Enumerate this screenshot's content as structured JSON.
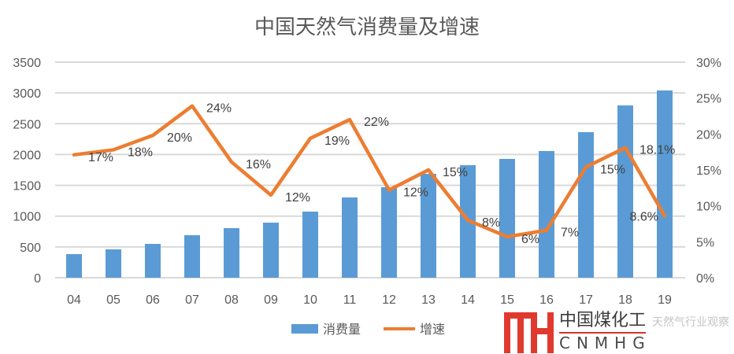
{
  "chart_data": {
    "type": "bar+line",
    "title": "中国天然气消费量及增速",
    "categories": [
      "04",
      "05",
      "06",
      "07",
      "08",
      "09",
      "10",
      "11",
      "12",
      "13",
      "14",
      "15",
      "16",
      "17",
      "18",
      "19"
    ],
    "series": [
      {
        "name": "消费量",
        "type": "bar",
        "axis": "left",
        "color": "#5b9bd5",
        "values": [
          383,
          460,
          549,
          690,
          805,
          894,
          1073,
          1303,
          1469,
          1686,
          1827,
          1929,
          2057,
          2363,
          2797,
          3040
        ]
      },
      {
        "name": "增速",
        "type": "line",
        "axis": "right",
        "color": "#ed7d31",
        "values": [
          17.1,
          17.8,
          19.8,
          23.9,
          16.1,
          11.5,
          19.4,
          22.0,
          12.2,
          15.0,
          8.0,
          5.7,
          6.6,
          15.4,
          18.1,
          8.6
        ],
        "labels": [
          "17%",
          "18%",
          "20%",
          "24%",
          "16%",
          "12%",
          "19%",
          "22%",
          "12%",
          "15%",
          "8%",
          "6%",
          "7%",
          "15%",
          "18.1%",
          "8.6%"
        ]
      }
    ],
    "y_left": {
      "min": 0,
      "max": 3500,
      "ticks": [
        "0",
        "500",
        "1000",
        "1500",
        "2000",
        "2500",
        "3000",
        "3500"
      ]
    },
    "y_right": {
      "min": 0,
      "max": 30,
      "ticks": [
        "0%",
        "5%",
        "10%",
        "15%",
        "20%",
        "25%",
        "30%"
      ]
    },
    "grid": true,
    "legend": "bottom-center"
  },
  "logo": {
    "cn": "中国煤化工",
    "en": "CNMHG",
    "watermark": "天然气行业观察"
  }
}
